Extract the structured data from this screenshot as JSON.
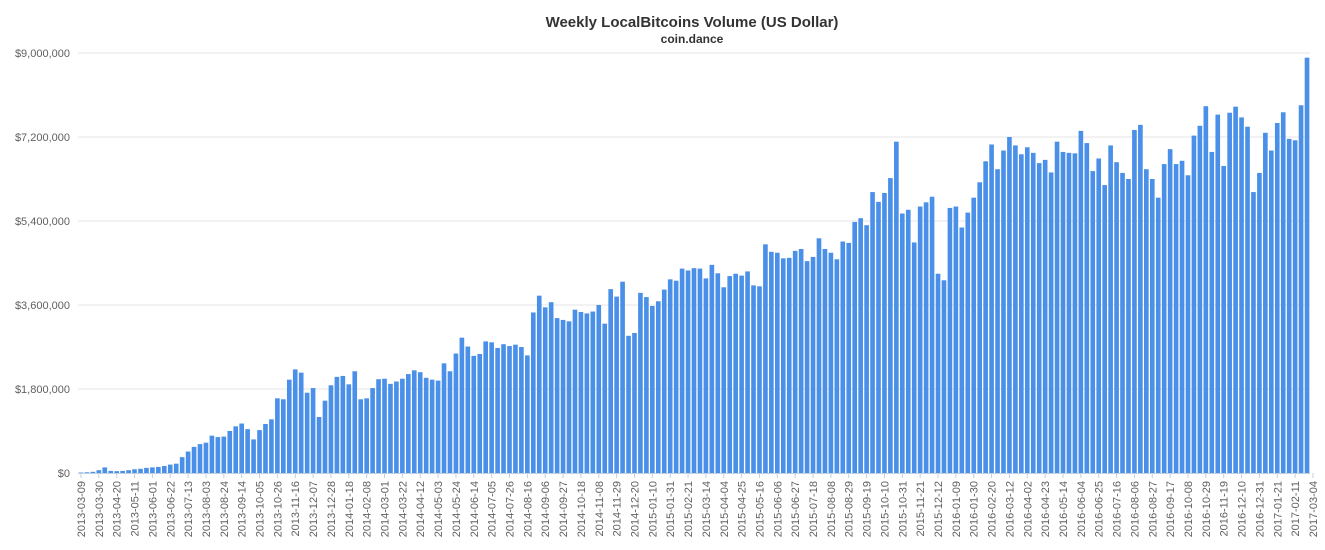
{
  "chart_data": {
    "type": "bar",
    "title": "Weekly LocalBitcoins Volume (US Dollar)",
    "subtitle": "coin.dance",
    "xlabel": "",
    "ylabel": "",
    "ylim": [
      0,
      9000000
    ],
    "y_ticks": [
      "$0",
      "$1,800,000",
      "$3,600,000",
      "$5,400,000",
      "$7,200,000",
      "$9,000,000"
    ],
    "y_tick_values": [
      0,
      1800000,
      3600000,
      5400000,
      7200000,
      9000000
    ],
    "x_tick_labels": [
      "2013-03-09",
      "2013-03-30",
      "2013-04-20",
      "2013-05-11",
      "2013-06-01",
      "2013-06-22",
      "2013-07-13",
      "2013-08-03",
      "2013-08-24",
      "2013-09-14",
      "2013-10-05",
      "2013-10-26",
      "2013-11-16",
      "2013-12-07",
      "2013-12-28",
      "2014-01-18",
      "2014-02-08",
      "2014-03-01",
      "2014-03-22",
      "2014-04-12",
      "2014-05-03",
      "2014-05-24",
      "2014-06-14",
      "2014-07-05",
      "2014-07-26",
      "2014-08-16",
      "2014-09-06",
      "2014-09-27",
      "2014-10-18",
      "2014-11-08",
      "2014-11-29",
      "2014-12-20",
      "2015-01-10",
      "2015-01-31",
      "2015-02-21",
      "2015-03-14",
      "2015-04-04",
      "2015-04-25",
      "2015-05-16",
      "2015-06-06",
      "2015-06-27",
      "2015-07-18",
      "2015-08-08",
      "2015-08-29",
      "2015-09-19",
      "2015-10-10",
      "2015-10-31",
      "2015-11-21",
      "2015-12-12",
      "2016-01-09",
      "2016-01-30",
      "2016-02-20",
      "2016-03-12",
      "2016-04-02",
      "2016-04-23",
      "2016-05-14",
      "2016-06-04",
      "2016-06-25",
      "2016-07-16",
      "2016-08-06",
      "2016-08-27",
      "2016-09-17",
      "2016-10-08",
      "2016-10-29",
      "2016-11-19",
      "2016-12-10",
      "2016-12-31",
      "2017-01-21",
      "2017-02-11",
      "2017-03-04"
    ],
    "bar_color": "#4a90e8",
    "values": [
      10000,
      15000,
      25000,
      60000,
      120000,
      45000,
      40000,
      45000,
      60000,
      80000,
      90000,
      110000,
      120000,
      130000,
      150000,
      180000,
      200000,
      340000,
      460000,
      560000,
      620000,
      650000,
      800000,
      770000,
      780000,
      900000,
      1000000,
      1060000,
      940000,
      720000,
      920000,
      1050000,
      1150000,
      1600000,
      1580000,
      2000000,
      2220000,
      2150000,
      1720000,
      1820000,
      1200000,
      1550000,
      1880000,
      2060000,
      2080000,
      1900000,
      2180000,
      1580000,
      1600000,
      1820000,
      2010000,
      2020000,
      1910000,
      1960000,
      2020000,
      2120000,
      2200000,
      2160000,
      2040000,
      2000000,
      1980000,
      2350000,
      2180000,
      2560000,
      2900000,
      2710000,
      2510000,
      2550000,
      2820000,
      2800000,
      2680000,
      2760000,
      2720000,
      2750000,
      2700000,
      2520000,
      3440000,
      3800000,
      3550000,
      3660000,
      3320000,
      3280000,
      3250000,
      3500000,
      3450000,
      3420000,
      3460000,
      3600000,
      3200000,
      3940000,
      3780000,
      4100000,
      2940000,
      3000000,
      3860000,
      3770000,
      3580000,
      3680000,
      3930000,
      4150000,
      4120000,
      4380000,
      4340000,
      4390000,
      4380000,
      4170000,
      4460000,
      4280000,
      3980000,
      4220000,
      4270000,
      4230000,
      4320000,
      4020000,
      4000000,
      4900000,
      4740000,
      4720000,
      4600000,
      4610000,
      4760000,
      4800000,
      4540000,
      4630000,
      5030000,
      4800000,
      4720000,
      4580000,
      4960000,
      4930000,
      5380000,
      5460000,
      5310000,
      6020000,
      5810000,
      6000000,
      6320000,
      7100000,
      5560000,
      5640000,
      4940000,
      5710000,
      5800000,
      5920000,
      4270000,
      4130000,
      5680000,
      5710000,
      5260000,
      5580000,
      5900000,
      6230000,
      6680000,
      7040000,
      6510000,
      6910000,
      7200000,
      7020000,
      6830000,
      6980000,
      6860000,
      6640000,
      6710000,
      6440000,
      7100000,
      6880000,
      6860000,
      6850000,
      7330000,
      7070000,
      6470000,
      6740000,
      6170000,
      7020000,
      6660000,
      6430000,
      6300000,
      7350000,
      7460000,
      6510000,
      6300000,
      5900000,
      6620000,
      6940000,
      6620000,
      6690000,
      6380000,
      7230000,
      7440000,
      7860000,
      6880000,
      7680000,
      6580000,
      7720000,
      7850000,
      7620000,
      7420000,
      6020000,
      6430000,
      7290000,
      6910000,
      7500000,
      7730000,
      7160000,
      7130000,
      7880000,
      8900000
    ]
  }
}
